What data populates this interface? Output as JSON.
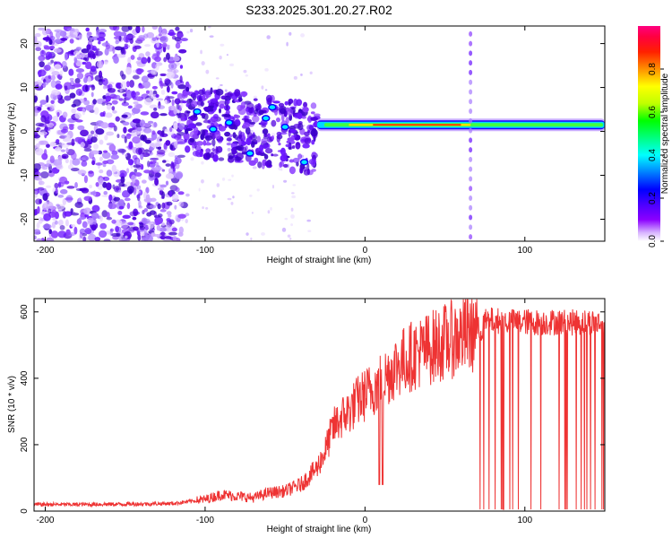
{
  "title": "S233.2025.301.20.27.R02",
  "chart_data": [
    {
      "type": "heatmap",
      "xlabel": "Height of straight line (km)",
      "ylabel": "Frequency (Hz)",
      "xlim": [
        -207,
        150
      ],
      "ylim": [
        -25,
        24
      ],
      "xticks": [
        -200,
        -100,
        0,
        100
      ],
      "yticks": [
        -20,
        -10,
        0,
        10,
        20
      ],
      "grid": false,
      "colorbar": {
        "label": "Normalized spectral amplitude",
        "range": [
          0,
          1
        ],
        "ticks": [
          "0.0",
          "0.2",
          "0.4",
          "0.6",
          "0.8"
        ],
        "colors": [
          "#ffffff",
          "#8b00ff",
          "#4b00ff",
          "#0000ff",
          "#00ffff",
          "#00ff80",
          "#00ff00",
          "#c0ff00",
          "#ffff00",
          "#ff8000",
          "#ff0000",
          "#ff0080"
        ]
      },
      "features": {
        "noise_region_km": [
          -207,
          -113
        ],
        "transition_region_km": [
          -113,
          -30
        ],
        "carrier_band_km": [
          -30,
          150
        ],
        "carrier_frequency_hz": 1.5,
        "spike_km": 66
      }
    },
    {
      "type": "line",
      "xlabel": "Height of straight line (km)",
      "ylabel": "SNR (10 * v/v)",
      "xlim": [
        -207,
        150
      ],
      "ylim": [
        0,
        640
      ],
      "xticks": [
        -200,
        -100,
        0,
        100
      ],
      "yticks": [
        0,
        200,
        400,
        600
      ],
      "grid": false,
      "series": [
        {
          "name": "SNR",
          "color": "#ee3333",
          "x": [
            -207,
            -180,
            -150,
            -120,
            -100,
            -90,
            -80,
            -70,
            -60,
            -50,
            -40,
            -30,
            -25,
            -20,
            -15,
            -10,
            -5,
            0,
            5,
            10,
            20,
            30,
            40,
            50,
            60,
            65,
            70,
            73,
            75,
            80,
            90,
            100,
            110,
            120,
            130,
            140,
            150
          ],
          "values": [
            20,
            20,
            21,
            23,
            35,
            50,
            45,
            40,
            55,
            60,
            80,
            130,
            180,
            250,
            280,
            300,
            330,
            350,
            370,
            390,
            440,
            470,
            490,
            510,
            525,
            535,
            545,
            550,
            570,
            575,
            570,
            570,
            568,
            570,
            568,
            570,
            565
          ]
        }
      ]
    }
  ]
}
